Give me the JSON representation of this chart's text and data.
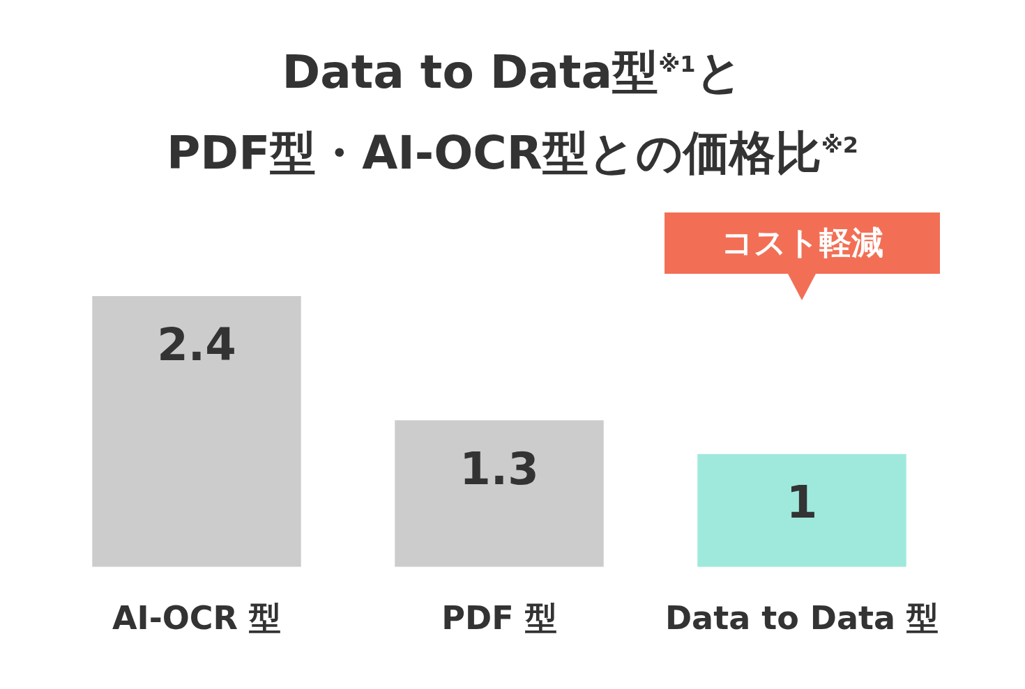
{
  "chart_data": {
    "type": "bar",
    "title": "Data to Data型$^{※1}$と PDF型・AI-OCR型との価格比$^{※2}$",
    "categories": [
      "AI-OCR 型",
      "PDF 型",
      "Data to Data 型"
    ],
    "values": [
      2.4,
      1.3,
      1
    ],
    "colors": [
      "#cccccc",
      "#cccccc",
      "#9ee9dc"
    ],
    "data_labels": true,
    "annotations": [
      "コスト軽減"
    ]
  }
}
